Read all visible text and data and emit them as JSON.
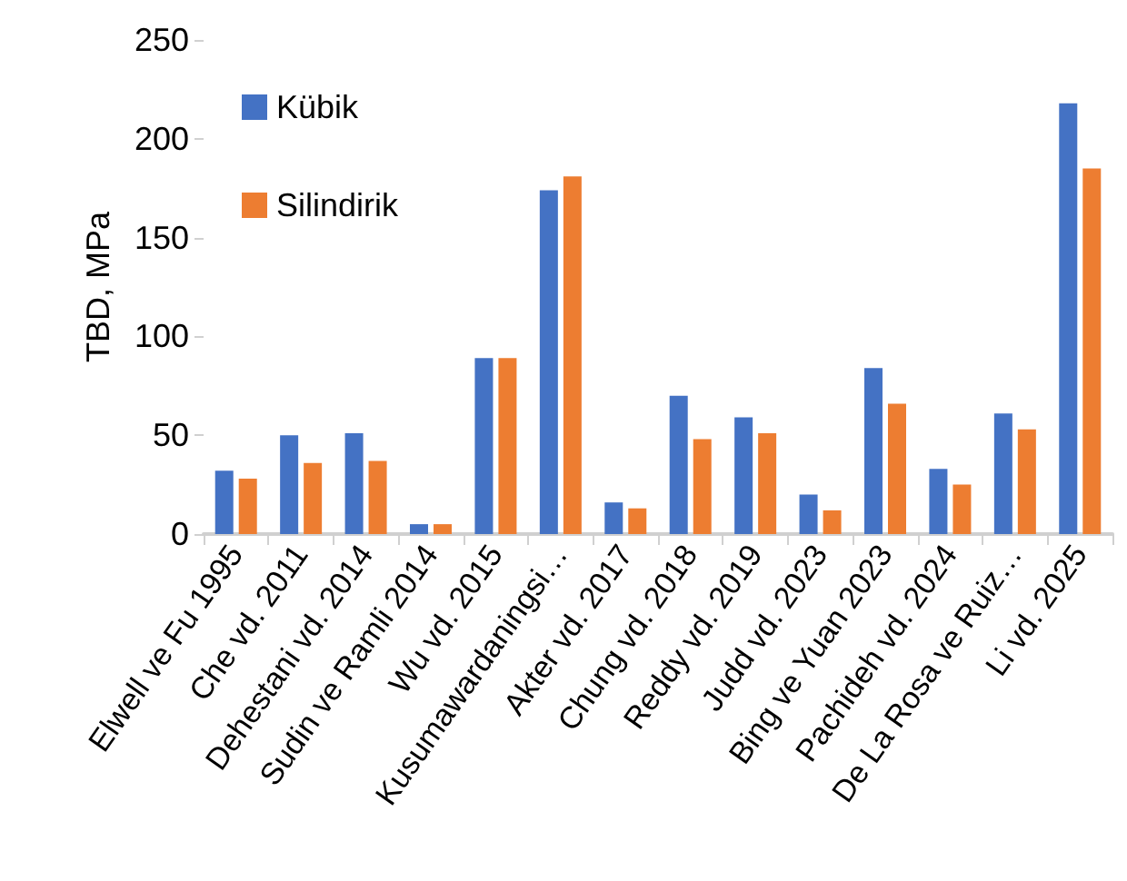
{
  "chart_data": {
    "type": "bar",
    "ylabel": "TBD, MPa",
    "categories": [
      "Elwell ve Fu 1995",
      "Che vd. 2011",
      "Dehestani vd. 2014",
      "Sudin ve Ramli 2014",
      "Wu vd. 2015",
      "Kusumawardaningsi…",
      "Akter vd. 2017",
      "Chung vd. 2018",
      "Reddy vd. 2019",
      "Judd vd. 2023",
      "Bing ve Yuan 2023",
      "Pachideh vd. 2024",
      "De La Rosa ve Ruiz…",
      "Li vd. 2025"
    ],
    "series": [
      {
        "name": "Kübik",
        "color": "#4472c4",
        "values": [
          32,
          50,
          51,
          5,
          89,
          174,
          16,
          70,
          59,
          20,
          84,
          33,
          61,
          218
        ]
      },
      {
        "name": "Silindirik",
        "color": "#ed7d31",
        "values": [
          28,
          36,
          37,
          5,
          89,
          181,
          13,
          48,
          51,
          12,
          66,
          25,
          53,
          185
        ]
      }
    ],
    "ylim": [
      0,
      250
    ],
    "yticks": [
      0,
      50,
      100,
      150,
      200,
      250
    ],
    "grid": false,
    "legend": "top left"
  }
}
